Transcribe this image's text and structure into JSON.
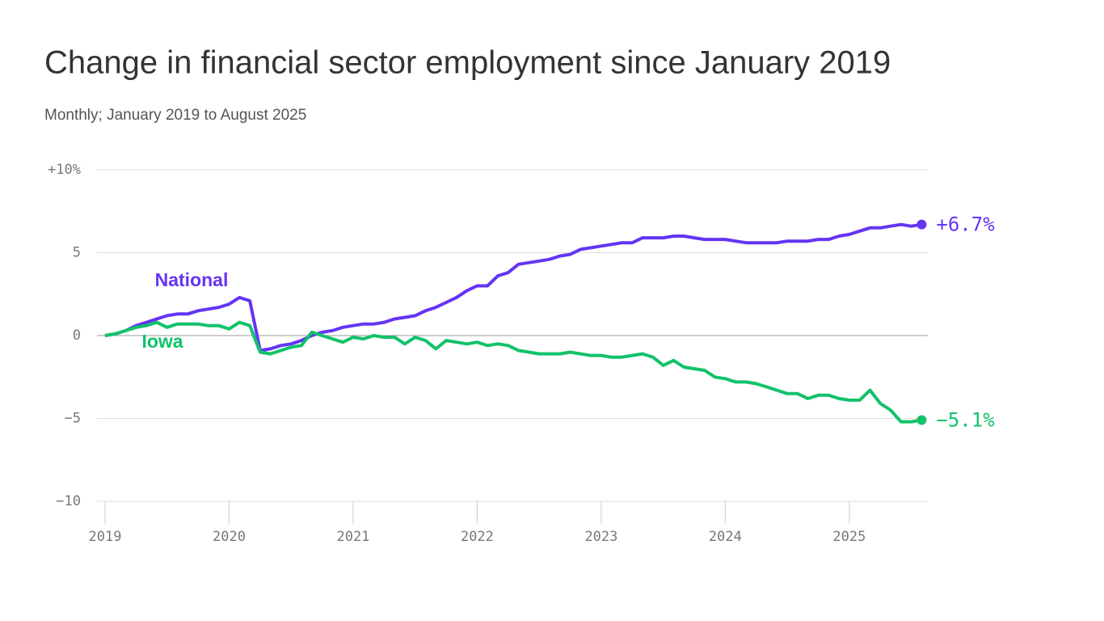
{
  "chart_data": {
    "type": "line",
    "title": "Change in financial sector employment since January 2019",
    "subtitle": "Monthly; January 2019 to August 2025",
    "categories": [
      "2019",
      null,
      null,
      null,
      null,
      null,
      null,
      null,
      null,
      null,
      null,
      null,
      "2020",
      null,
      null,
      null,
      null,
      null,
      null,
      null,
      null,
      null,
      null,
      null,
      "2021",
      null,
      null,
      null,
      null,
      null,
      null,
      null,
      null,
      null,
      null,
      null,
      "2022",
      null,
      null,
      null,
      null,
      null,
      null,
      null,
      null,
      null,
      null,
      null,
      "2023",
      null,
      null,
      null,
      null,
      null,
      null,
      null,
      null,
      null,
      null,
      null,
      "2024",
      null,
      null,
      null,
      null,
      null,
      null,
      null,
      null,
      null,
      null,
      null,
      "2025",
      null,
      null,
      null,
      null,
      null,
      null,
      null
    ],
    "series": [
      {
        "name": "National",
        "color": "#6534f5",
        "end_label": "+6.7%",
        "values": [
          0,
          0.1,
          0.3,
          0.6,
          0.8,
          1.0,
          1.2,
          1.3,
          1.3,
          1.5,
          1.6,
          1.7,
          1.9,
          2.3,
          2.1,
          -0.9,
          -0.8,
          -0.6,
          -0.5,
          -0.3,
          0.0,
          0.2,
          0.3,
          0.5,
          0.6,
          0.7,
          0.7,
          0.8,
          1.0,
          1.1,
          1.2,
          1.5,
          1.7,
          2.0,
          2.3,
          2.7,
          3.0,
          3.0,
          3.6,
          3.8,
          4.3,
          4.4,
          4.5,
          4.6,
          4.8,
          4.9,
          5.2,
          5.3,
          5.4,
          5.5,
          5.6,
          5.6,
          5.9,
          5.9,
          5.9,
          6.0,
          6.0,
          5.9,
          5.8,
          5.8,
          5.8,
          5.7,
          5.6,
          5.6,
          5.6,
          5.6,
          5.7,
          5.7,
          5.7,
          5.8,
          5.8,
          6.0,
          6.1,
          6.3,
          6.5,
          6.5,
          6.6,
          6.7,
          6.6,
          6.7
        ]
      },
      {
        "name": "Iowa",
        "color": "#12c26a",
        "end_label": "−5.1%",
        "values": [
          0,
          0.1,
          0.3,
          0.5,
          0.6,
          0.8,
          0.5,
          0.7,
          0.7,
          0.7,
          0.6,
          0.6,
          0.4,
          0.8,
          0.6,
          -1.0,
          -1.1,
          -0.9,
          -0.7,
          -0.6,
          0.2,
          0.0,
          -0.2,
          -0.4,
          -0.1,
          -0.2,
          0.0,
          -0.1,
          -0.1,
          -0.5,
          -0.1,
          -0.3,
          -0.8,
          -0.3,
          -0.4,
          -0.5,
          -0.4,
          -0.6,
          -0.5,
          -0.6,
          -0.9,
          -1.0,
          -1.1,
          -1.1,
          -1.1,
          -1.0,
          -1.1,
          -1.2,
          -1.2,
          -1.3,
          -1.3,
          -1.2,
          -1.1,
          -1.3,
          -1.8,
          -1.5,
          -1.9,
          -2.0,
          -2.1,
          -2.5,
          -2.6,
          -2.8,
          -2.8,
          -2.9,
          -3.1,
          -3.3,
          -3.5,
          -3.5,
          -3.8,
          -3.6,
          -3.6,
          -3.8,
          -3.9,
          -3.9,
          -3.3,
          -4.1,
          -4.5,
          -5.2,
          -5.2,
          -5.1
        ]
      }
    ],
    "ylim": [
      -10,
      10
    ],
    "yticks": [
      {
        "value": 10,
        "label": "+10%"
      },
      5,
      0,
      {
        "value": -5,
        "label": "−5"
      },
      {
        "value": -10,
        "label": "−10"
      }
    ],
    "grid": true
  }
}
